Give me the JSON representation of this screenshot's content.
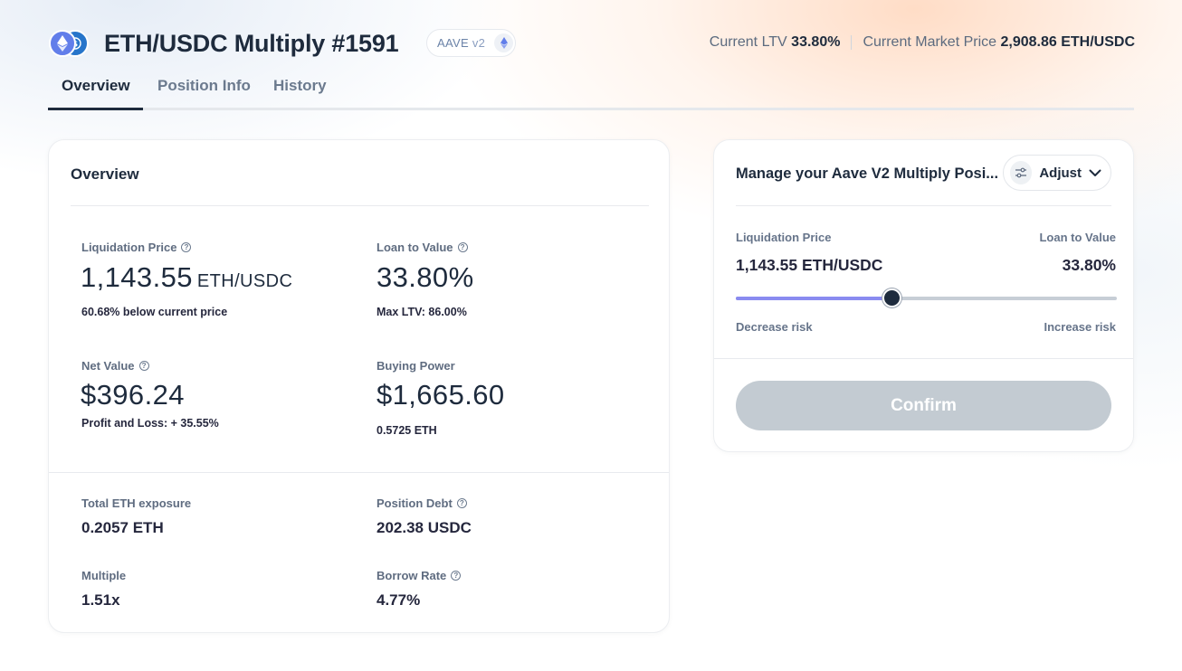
{
  "header": {
    "title": "ETH/USDC Multiply #1591",
    "protocol": "AAVE",
    "protocol_version": "v2",
    "current_ltv_label": "Current LTV",
    "current_ltv_value": "33.80%",
    "market_price_label": "Current Market Price",
    "market_price_value": "2,908.86 ETH/USDC"
  },
  "tabs": [
    {
      "label": "Overview",
      "active": true
    },
    {
      "label": "Position Info",
      "active": false
    },
    {
      "label": "History",
      "active": false
    }
  ],
  "overview": {
    "title": "Overview",
    "liquidation_price": {
      "label": "Liquidation Price",
      "value": "1,143.55",
      "unit": "ETH/USDC",
      "sub": "60.68% below current price"
    },
    "loan_to_value": {
      "label": "Loan to Value",
      "value": "33.80%",
      "sub": "Max LTV: 86.00%"
    },
    "net_value": {
      "label": "Net Value",
      "value": "$396.24",
      "sub": "Profit and Loss: + 35.55%"
    },
    "buying_power": {
      "label": "Buying Power",
      "value": "$1,665.60",
      "sub": "0.5725 ETH"
    },
    "total_eth_exposure": {
      "label": "Total ETH exposure",
      "value": "0.2057 ETH"
    },
    "position_debt": {
      "label": "Position Debt",
      "value": "202.38 USDC"
    },
    "multiple": {
      "label": "Multiple",
      "value": "1.51x"
    },
    "borrow_rate": {
      "label": "Borrow Rate",
      "value": "4.77%"
    }
  },
  "manage": {
    "title": "Manage your Aave V2 Multiply Posi...",
    "adjust_label": "Adjust",
    "liquidation_price_label": "Liquidation Price",
    "liquidation_price_value": "1,143.55 ETH/USDC",
    "ltv_label": "Loan to Value",
    "ltv_value": "33.80%",
    "slider_fraction": 0.41,
    "decrease_label": "Decrease risk",
    "increase_label": "Increase risk",
    "confirm_label": "Confirm"
  },
  "colors": {
    "primary_text": "#1e2b3d",
    "slider_fill": "#8a8bf0",
    "confirm_disabled": "#c3cbd2"
  }
}
